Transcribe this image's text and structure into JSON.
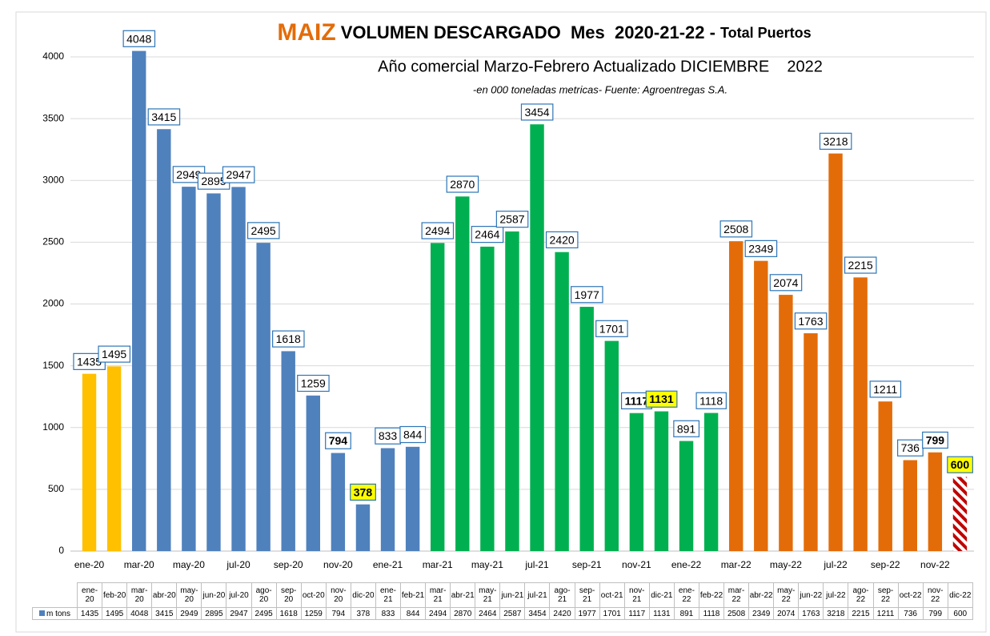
{
  "chart_data": {
    "type": "bar",
    "title_main": "MAIZ",
    "title": "VOLUMEN DESCARGADO  Mes  2020-21-22 -",
    "title_suffix": "Total Puertos",
    "subtitle": "Año comercial Marzo-Febrero Actualizado DICIEMBRE    2022",
    "note": "-en 000 toneladas metricas- Fuente: Agroentregas S.A.",
    "categories": [
      "ene-20",
      "feb-20",
      "mar-20",
      "abr-20",
      "may-20",
      "jun-20",
      "jul-20",
      "ago-20",
      "sep-20",
      "oct-20",
      "nov-20",
      "dic-20",
      "ene-21",
      "feb-21",
      "mar-21",
      "abr-21",
      "may-21",
      "jun-21",
      "jul-21",
      "ago-21",
      "sep-21",
      "oct-21",
      "nov-21",
      "dic-21",
      "ene-22",
      "feb-22",
      "mar-22",
      "abr-22",
      "may-22",
      "jun-22",
      "jul-22",
      "ago-22",
      "sep-22",
      "oct-22",
      "nov-22",
      "dic-22"
    ],
    "series": [
      {
        "name": "m tons",
        "color": "#4f81bd",
        "values": [
          1435,
          1495,
          4048,
          3415,
          2949,
          2895,
          2947,
          2495,
          1618,
          1259,
          794,
          378,
          833,
          844,
          2494,
          2870,
          2464,
          2587,
          3454,
          2420,
          1977,
          1701,
          1117,
          1131,
          891,
          1118,
          2508,
          2349,
          2074,
          1763,
          3218,
          2215,
          1211,
          736,
          799,
          600
        ],
        "colors": [
          "#ffc000",
          "#ffc000",
          "#4f81bd",
          "#4f81bd",
          "#4f81bd",
          "#4f81bd",
          "#4f81bd",
          "#4f81bd",
          "#4f81bd",
          "#4f81bd",
          "#4f81bd",
          "#4f81bd",
          "#4f81bd",
          "#4f81bd",
          "#00b050",
          "#00b050",
          "#00b050",
          "#00b050",
          "#00b050",
          "#00b050",
          "#00b050",
          "#00b050",
          "#00b050",
          "#00b050",
          "#00b050",
          "#00b050",
          "#e36c09",
          "#e36c09",
          "#e36c09",
          "#e36c09",
          "#e36c09",
          "#e36c09",
          "#e36c09",
          "#e36c09",
          "#e36c09",
          "#c00000"
        ],
        "hatched": [
          35
        ],
        "label_bold": [
          10,
          11,
          22,
          23,
          34,
          35
        ],
        "label_highlight": [
          11,
          23,
          35
        ]
      }
    ],
    "ylim": [
      0,
      4000
    ],
    "yticks": [
      0,
      500,
      1000,
      1500,
      2000,
      2500,
      3000,
      3500,
      4000
    ],
    "grid": true
  }
}
